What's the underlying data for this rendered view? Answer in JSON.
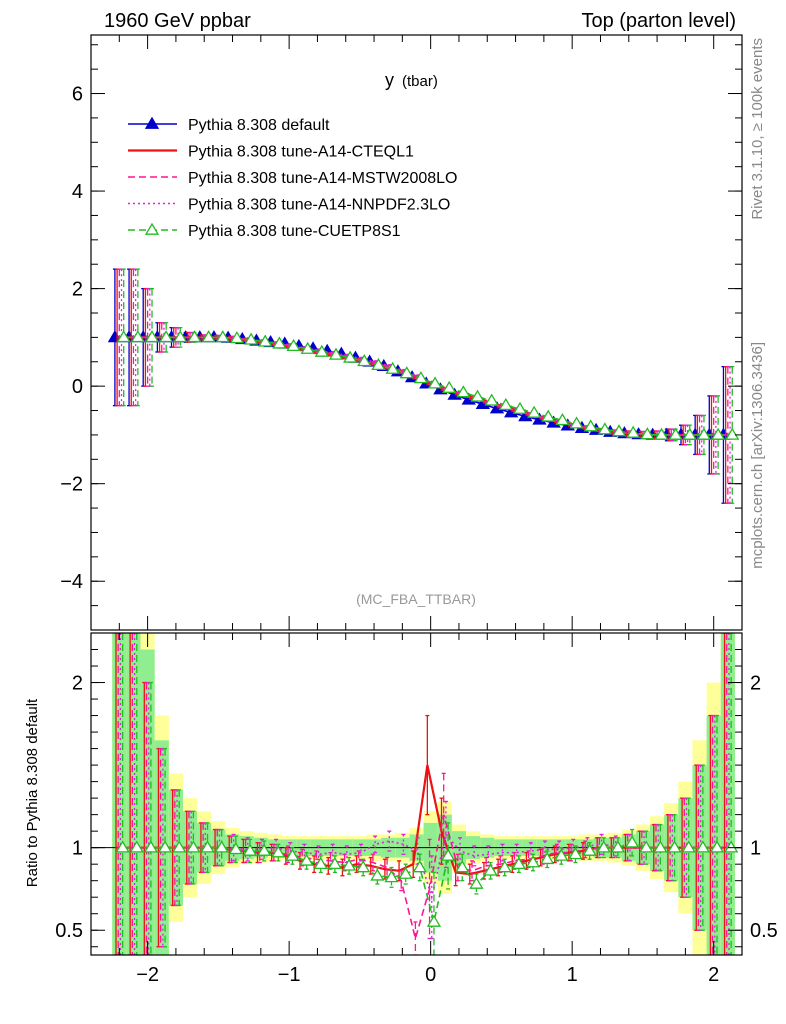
{
  "header": {
    "left": "1960 GeV ppbar",
    "right": "Top (parton level)"
  },
  "side_labels": {
    "rivet": "Rivet 3.1.10, ≥ 100k events",
    "mcplots": "mcplots.cern.ch [arXiv:1306.3436]"
  },
  "chart_data": [
    {
      "type": "line",
      "title": "y",
      "title_sub": "(tbar)",
      "annotation": "(MC_FBA_TTBAR)",
      "xlim": [
        -2.4,
        2.2
      ],
      "ylim": [
        -5.0,
        7.2
      ],
      "yticks": [
        "6",
        "4",
        "2",
        "0",
        "−2",
        "−4"
      ],
      "ytick_values": [
        6,
        4,
        2,
        0,
        -2,
        -4
      ],
      "legend_position": "top-left",
      "x": [
        -2.2,
        -2.1,
        -2.0,
        -1.9,
        -1.8,
        -1.7,
        -1.6,
        -1.5,
        -1.4,
        -1.3,
        -1.2,
        -1.1,
        -1.0,
        -0.9,
        -0.8,
        -0.7,
        -0.6,
        -0.5,
        -0.4,
        -0.3,
        -0.2,
        -0.1,
        0.0,
        0.1,
        0.2,
        0.3,
        0.4,
        0.5,
        0.6,
        0.7,
        0.8,
        0.9,
        1.0,
        1.1,
        1.2,
        1.3,
        1.4,
        1.5,
        1.6,
        1.7,
        1.8,
        1.9,
        2.0,
        2.1
      ],
      "series": [
        {
          "name": "Pythia 8.308 default",
          "color": "#0000cc",
          "style": "solid-filled-triangle",
          "values": [
            1.0,
            1.0,
            1.0,
            1.0,
            1.0,
            1.0,
            1.0,
            1.0,
            0.99,
            0.96,
            0.93,
            0.9,
            0.87,
            0.82,
            0.77,
            0.72,
            0.66,
            0.58,
            0.5,
            0.41,
            0.3,
            0.18,
            0.05,
            -0.07,
            -0.18,
            -0.28,
            -0.37,
            -0.46,
            -0.54,
            -0.62,
            -0.69,
            -0.75,
            -0.81,
            -0.86,
            -0.9,
            -0.94,
            -0.97,
            -0.99,
            -1.0,
            -1.0,
            -1.0,
            -1.0,
            -1.0,
            -1.0
          ],
          "errors": [
            1.4,
            1.4,
            1.0,
            0.3,
            0.2,
            0.1,
            0.05,
            0.04,
            0.04,
            0.03,
            0.03,
            0.03,
            0.03,
            0.03,
            0.03,
            0.03,
            0.03,
            0.03,
            0.03,
            0.03,
            0.03,
            0.03,
            0.03,
            0.03,
            0.03,
            0.03,
            0.03,
            0.03,
            0.03,
            0.03,
            0.03,
            0.03,
            0.03,
            0.03,
            0.03,
            0.04,
            0.05,
            0.06,
            0.08,
            0.12,
            0.2,
            0.4,
            0.8,
            1.4
          ]
        },
        {
          "name": "Pythia 8.308 tune-A14-CTEQL1",
          "color": "#ee1111",
          "style": "solid",
          "values": [
            1.0,
            1.0,
            1.0,
            1.0,
            1.0,
            1.0,
            1.0,
            1.0,
            0.98,
            0.95,
            0.91,
            0.87,
            0.82,
            0.76,
            0.7,
            0.65,
            0.59,
            0.53,
            0.46,
            0.38,
            0.29,
            0.18,
            0.06,
            -0.05,
            -0.15,
            -0.24,
            -0.32,
            -0.41,
            -0.49,
            -0.57,
            -0.65,
            -0.72,
            -0.79,
            -0.85,
            -0.9,
            -0.94,
            -0.97,
            -0.99,
            -1.0,
            -1.0,
            -1.0,
            -1.0,
            -1.0,
            -1.0
          ],
          "errors": [
            1.4,
            1.4,
            1.0,
            0.3,
            0.2,
            0.1,
            0.05,
            0.04,
            0.04,
            0.03,
            0.03,
            0.03,
            0.03,
            0.03,
            0.03,
            0.03,
            0.03,
            0.03,
            0.03,
            0.03,
            0.03,
            0.03,
            0.03,
            0.03,
            0.03,
            0.03,
            0.03,
            0.03,
            0.03,
            0.03,
            0.03,
            0.03,
            0.03,
            0.03,
            0.03,
            0.04,
            0.05,
            0.06,
            0.08,
            0.12,
            0.2,
            0.4,
            0.8,
            1.4
          ]
        },
        {
          "name": "Pythia 8.308 tune-A14-MSTW2008LO",
          "color": "#ff1493",
          "style": "dashed",
          "values": [
            1.0,
            1.0,
            1.0,
            1.0,
            1.0,
            1.0,
            1.0,
            1.0,
            0.98,
            0.95,
            0.91,
            0.87,
            0.83,
            0.77,
            0.72,
            0.66,
            0.61,
            0.55,
            0.48,
            0.4,
            0.3,
            0.19,
            0.06,
            -0.06,
            -0.16,
            -0.26,
            -0.34,
            -0.42,
            -0.5,
            -0.58,
            -0.66,
            -0.73,
            -0.8,
            -0.85,
            -0.9,
            -0.94,
            -0.97,
            -0.99,
            -1.0,
            -1.0,
            -1.0,
            -1.0,
            -1.0,
            -1.0
          ],
          "errors": [
            1.4,
            1.4,
            1.0,
            0.3,
            0.2,
            0.1,
            0.05,
            0.04,
            0.04,
            0.03,
            0.03,
            0.03,
            0.03,
            0.03,
            0.03,
            0.03,
            0.03,
            0.03,
            0.03,
            0.03,
            0.03,
            0.03,
            0.03,
            0.03,
            0.03,
            0.03,
            0.03,
            0.03,
            0.03,
            0.03,
            0.03,
            0.03,
            0.03,
            0.03,
            0.03,
            0.04,
            0.05,
            0.06,
            0.08,
            0.12,
            0.2,
            0.4,
            0.8,
            1.4
          ]
        },
        {
          "name": "Pythia 8.308 tune-A14-NNPDF2.3LO",
          "color": "#dd22dd",
          "style": "dotted",
          "values": [
            1.0,
            1.0,
            1.0,
            1.0,
            1.0,
            1.0,
            1.0,
            1.0,
            0.98,
            0.96,
            0.92,
            0.88,
            0.84,
            0.78,
            0.73,
            0.68,
            0.62,
            0.56,
            0.49,
            0.41,
            0.31,
            0.2,
            0.07,
            -0.06,
            -0.16,
            -0.26,
            -0.35,
            -0.43,
            -0.51,
            -0.59,
            -0.66,
            -0.73,
            -0.8,
            -0.86,
            -0.91,
            -0.94,
            -0.97,
            -0.99,
            -1.0,
            -1.0,
            -1.0,
            -1.0,
            -1.0,
            -1.0
          ],
          "errors": [
            1.4,
            1.4,
            1.0,
            0.3,
            0.2,
            0.1,
            0.05,
            0.04,
            0.04,
            0.03,
            0.03,
            0.03,
            0.03,
            0.03,
            0.03,
            0.03,
            0.03,
            0.03,
            0.03,
            0.03,
            0.03,
            0.03,
            0.03,
            0.03,
            0.03,
            0.03,
            0.03,
            0.03,
            0.03,
            0.03,
            0.03,
            0.03,
            0.03,
            0.03,
            0.03,
            0.04,
            0.05,
            0.06,
            0.08,
            0.12,
            0.2,
            0.4,
            0.8,
            1.4
          ]
        },
        {
          "name": "Pythia 8.308 tune-CUETP8S1",
          "color": "#22bb22",
          "style": "dashed-open-triangle",
          "values": [
            1.0,
            1.0,
            1.0,
            1.0,
            1.0,
            1.0,
            1.0,
            1.0,
            0.98,
            0.95,
            0.91,
            0.87,
            0.82,
            0.76,
            0.7,
            0.64,
            0.58,
            0.51,
            0.43,
            0.35,
            0.26,
            0.16,
            0.05,
            -0.04,
            -0.13,
            -0.22,
            -0.3,
            -0.39,
            -0.47,
            -0.55,
            -0.63,
            -0.7,
            -0.77,
            -0.83,
            -0.89,
            -0.93,
            -0.96,
            -0.99,
            -1.0,
            -1.0,
            -1.0,
            -1.0,
            -1.0,
            -1.0
          ],
          "errors": [
            1.4,
            1.4,
            1.0,
            0.3,
            0.2,
            0.1,
            0.05,
            0.04,
            0.04,
            0.03,
            0.03,
            0.03,
            0.03,
            0.03,
            0.03,
            0.03,
            0.03,
            0.03,
            0.03,
            0.03,
            0.03,
            0.03,
            0.03,
            0.03,
            0.03,
            0.03,
            0.03,
            0.03,
            0.03,
            0.03,
            0.03,
            0.03,
            0.03,
            0.03,
            0.03,
            0.04,
            0.05,
            0.06,
            0.08,
            0.12,
            0.2,
            0.4,
            0.8,
            1.4
          ]
        }
      ]
    },
    {
      "type": "line",
      "ylabel": "Ratio to Pythia 8.308 default",
      "xlim": [
        -2.4,
        2.2
      ],
      "ylim": [
        0.35,
        2.3
      ],
      "xticks": [
        "−2",
        "−1",
        "0",
        "1",
        "2"
      ],
      "xtick_values": [
        -2,
        -1,
        0,
        1,
        2
      ],
      "yticks": [
        "2",
        "1",
        "0.5"
      ],
      "ytick_values": [
        2,
        1,
        0.5
      ],
      "reference_line": 1,
      "band_colors": {
        "inner": "#90ee90",
        "outer": "#ffff99"
      },
      "x": [
        -2.2,
        -2.1,
        -2.0,
        -1.9,
        -1.8,
        -1.7,
        -1.6,
        -1.5,
        -1.4,
        -1.3,
        -1.2,
        -1.1,
        -1.0,
        -0.9,
        -0.8,
        -0.7,
        -0.6,
        -0.5,
        -0.4,
        -0.3,
        -0.2,
        -0.1,
        0.0,
        0.1,
        0.2,
        0.3,
        0.4,
        0.5,
        0.6,
        0.7,
        0.8,
        0.9,
        1.0,
        1.1,
        1.2,
        1.3,
        1.4,
        1.5,
        1.6,
        1.7,
        1.8,
        1.9,
        2.0,
        2.1
      ],
      "band_inner": [
        1.4,
        1.4,
        1.2,
        0.65,
        0.35,
        0.22,
        0.15,
        0.11,
        0.08,
        0.07,
        0.06,
        0.05,
        0.05,
        0.05,
        0.05,
        0.05,
        0.05,
        0.05,
        0.05,
        0.06,
        0.06,
        0.08,
        0.15,
        0.2,
        0.1,
        0.07,
        0.06,
        0.05,
        0.05,
        0.05,
        0.05,
        0.05,
        0.05,
        0.05,
        0.06,
        0.06,
        0.08,
        0.1,
        0.14,
        0.2,
        0.3,
        0.5,
        0.8,
        1.3
      ],
      "band_outer": [
        1.6,
        1.6,
        1.4,
        0.8,
        0.45,
        0.3,
        0.22,
        0.16,
        0.12,
        0.1,
        0.09,
        0.08,
        0.07,
        0.07,
        0.07,
        0.07,
        0.07,
        0.07,
        0.08,
        0.08,
        0.09,
        0.12,
        0.22,
        0.28,
        0.14,
        0.1,
        0.08,
        0.07,
        0.07,
        0.07,
        0.07,
        0.07,
        0.07,
        0.08,
        0.08,
        0.09,
        0.11,
        0.14,
        0.19,
        0.27,
        0.4,
        0.65,
        1.0,
        1.5
      ],
      "series": [
        {
          "name": "Pythia 8.308 tune-A14-CTEQL1",
          "color": "#ee1111",
          "style": "solid",
          "values": [
            1.0,
            1.0,
            1.0,
            1.0,
            1.0,
            1.0,
            1.0,
            1.0,
            0.99,
            0.98,
            0.97,
            0.97,
            0.95,
            0.92,
            0.9,
            0.89,
            0.88,
            0.9,
            0.89,
            0.87,
            0.86,
            0.9,
            1.5,
            1.1,
            0.85,
            0.84,
            0.86,
            0.88,
            0.9,
            0.92,
            0.94,
            0.96,
            0.97,
            0.98,
            1.0,
            1.0,
            1.0,
            1.0,
            1.0,
            1.0,
            1.0,
            1.0,
            1.0,
            1.0
          ],
          "errors": [
            1.3,
            1.3,
            1.0,
            0.6,
            0.35,
            0.22,
            0.15,
            0.11,
            0.08,
            0.07,
            0.06,
            0.05,
            0.05,
            0.05,
            0.05,
            0.05,
            0.05,
            0.05,
            0.05,
            0.06,
            0.06,
            0.08,
            0.3,
            0.2,
            0.08,
            0.06,
            0.05,
            0.05,
            0.05,
            0.05,
            0.05,
            0.05,
            0.05,
            0.05,
            0.06,
            0.06,
            0.08,
            0.1,
            0.14,
            0.2,
            0.3,
            0.5,
            0.8,
            1.3
          ]
        },
        {
          "name": "Pythia 8.308 tune-A14-MSTW2008LO",
          "color": "#ff1493",
          "style": "dashed",
          "values": [
            1.0,
            1.0,
            1.0,
            1.0,
            1.0,
            1.0,
            1.0,
            1.0,
            0.99,
            0.98,
            0.97,
            0.97,
            0.96,
            0.94,
            0.93,
            0.92,
            0.91,
            0.93,
            0.91,
            0.88,
            0.8,
            0.45,
            0.75,
            1.2,
            0.88,
            0.86,
            0.89,
            0.9,
            0.92,
            0.93,
            0.95,
            0.97,
            0.97,
            0.99,
            1.0,
            1.0,
            1.0,
            1.0,
            1.0,
            1.0,
            1.0,
            1.0,
            1.0,
            1.0
          ],
          "errors": [
            1.3,
            1.3,
            1.0,
            0.6,
            0.35,
            0.22,
            0.15,
            0.11,
            0.08,
            0.07,
            0.06,
            0.05,
            0.05,
            0.05,
            0.05,
            0.05,
            0.05,
            0.05,
            0.05,
            0.06,
            0.06,
            0.1,
            0.3,
            0.25,
            0.08,
            0.06,
            0.05,
            0.05,
            0.05,
            0.05,
            0.05,
            0.05,
            0.05,
            0.05,
            0.06,
            0.06,
            0.08,
            0.1,
            0.14,
            0.2,
            0.3,
            0.5,
            0.8,
            1.3
          ]
        },
        {
          "name": "Pythia 8.308 tune-A14-NNPDF2.3LO",
          "color": "#dd22dd",
          "style": "dotted",
          "values": [
            1.0,
            1.0,
            1.0,
            1.0,
            1.0,
            1.0,
            1.0,
            1.0,
            1.0,
            0.99,
            0.99,
            1.0,
            0.98,
            0.97,
            0.96,
            0.97,
            0.96,
            0.97,
            1.02,
            1.04,
            1.02,
            0.98,
            0.7,
            1.08,
            0.98,
            0.95,
            0.96,
            0.97,
            0.97,
            0.98,
            0.99,
            0.99,
            1.0,
            1.01,
            1.02,
            1.01,
            1.0,
            1.0,
            1.0,
            1.0,
            1.0,
            1.0,
            1.0,
            1.0
          ],
          "errors": [
            1.3,
            1.3,
            1.0,
            0.6,
            0.35,
            0.22,
            0.15,
            0.11,
            0.08,
            0.07,
            0.06,
            0.05,
            0.05,
            0.05,
            0.05,
            0.05,
            0.05,
            0.05,
            0.05,
            0.06,
            0.06,
            0.08,
            0.25,
            0.2,
            0.08,
            0.06,
            0.05,
            0.05,
            0.05,
            0.05,
            0.05,
            0.05,
            0.05,
            0.05,
            0.06,
            0.06,
            0.08,
            0.1,
            0.14,
            0.2,
            0.3,
            0.5,
            0.8,
            1.3
          ]
        },
        {
          "name": "Pythia 8.308 tune-CUETP8S1",
          "color": "#22bb22",
          "style": "dashed-open-triangle",
          "values": [
            1.0,
            1.0,
            1.0,
            1.0,
            1.0,
            1.0,
            1.0,
            1.0,
            0.99,
            0.98,
            0.98,
            0.97,
            0.95,
            0.92,
            0.9,
            0.9,
            0.89,
            0.88,
            0.83,
            0.82,
            0.84,
            0.88,
            0.55,
            0.95,
            0.88,
            0.78,
            0.86,
            0.88,
            0.9,
            0.91,
            0.93,
            0.95,
            0.96,
            0.98,
            1.0,
            1.0,
            1.03,
            1.0,
            1.0,
            1.0,
            1.0,
            1.0,
            1.0,
            1.0
          ],
          "errors": [
            1.3,
            1.3,
            1.0,
            0.6,
            0.35,
            0.22,
            0.15,
            0.11,
            0.08,
            0.07,
            0.06,
            0.05,
            0.05,
            0.05,
            0.05,
            0.05,
            0.05,
            0.05,
            0.05,
            0.06,
            0.06,
            0.08,
            0.3,
            0.2,
            0.08,
            0.06,
            0.05,
            0.05,
            0.05,
            0.05,
            0.05,
            0.05,
            0.05,
            0.05,
            0.06,
            0.06,
            0.08,
            0.1,
            0.14,
            0.2,
            0.3,
            0.5,
            0.8,
            1.3
          ]
        }
      ]
    }
  ]
}
